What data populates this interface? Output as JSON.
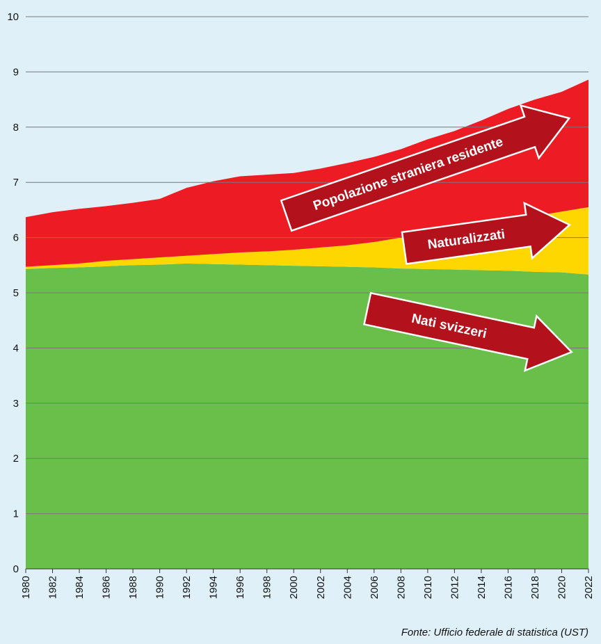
{
  "chart_data": {
    "type": "stacked-area",
    "x": [
      1980,
      1982,
      1984,
      1986,
      1988,
      1990,
      1992,
      1994,
      1996,
      1998,
      2000,
      2002,
      2004,
      2006,
      2008,
      2010,
      2012,
      2014,
      2016,
      2018,
      2020,
      2022
    ],
    "xlim": [
      1980,
      2022
    ],
    "ylim": [
      0,
      10
    ],
    "yticks": [
      0,
      1,
      2,
      3,
      4,
      5,
      6,
      7,
      8,
      9,
      10
    ],
    "grid": true,
    "series": [
      {
        "name": "Nati svizzeri",
        "color": "#6abf4b",
        "values": [
          5.43,
          5.45,
          5.46,
          5.48,
          5.5,
          5.51,
          5.53,
          5.52,
          5.51,
          5.5,
          5.49,
          5.48,
          5.47,
          5.46,
          5.44,
          5.43,
          5.42,
          5.41,
          5.4,
          5.38,
          5.37,
          5.33
        ]
      },
      {
        "name": "Naturalizzati",
        "color": "#ffd700",
        "values": [
          0.04,
          0.05,
          0.07,
          0.1,
          0.11,
          0.13,
          0.14,
          0.18,
          0.22,
          0.25,
          0.29,
          0.34,
          0.39,
          0.46,
          0.56,
          0.65,
          0.73,
          0.82,
          0.91,
          1.01,
          1.1,
          1.22
        ]
      },
      {
        "name": "Popolazione straniera residente",
        "color": "#ed1c24",
        "values": [
          0.9,
          0.96,
          0.99,
          0.99,
          1.02,
          1.06,
          1.23,
          1.32,
          1.38,
          1.39,
          1.39,
          1.43,
          1.49,
          1.54,
          1.6,
          1.7,
          1.78,
          1.89,
          2.02,
          2.11,
          2.17,
          2.31
        ]
      }
    ],
    "source": "Fonte: Ufficio federale di statistica (UST)"
  }
}
